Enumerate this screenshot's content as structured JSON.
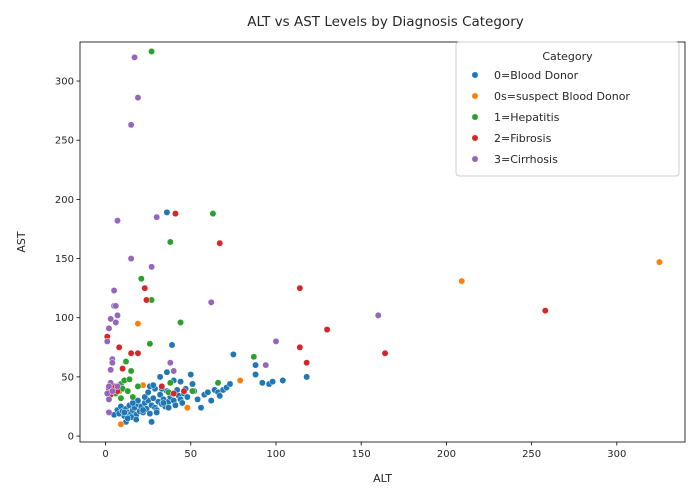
{
  "chart_data": {
    "type": "scatter",
    "title": "ALT vs AST Levels by Diagnosis Category",
    "xlabel": "ALT",
    "ylabel": "AST",
    "xlim": [
      -15,
      340
    ],
    "ylim": [
      -5,
      333
    ],
    "xticks": [
      0,
      50,
      100,
      150,
      200,
      250,
      300
    ],
    "yticks": [
      0,
      50,
      100,
      150,
      200,
      250,
      300
    ],
    "grid": false,
    "legend": {
      "title": "Category",
      "placement": "top-right"
    },
    "series": [
      {
        "name": "0=Blood Donor",
        "color": "#1f77b4",
        "points": [
          [
            5,
            18
          ],
          [
            7,
            22
          ],
          [
            8,
            19
          ],
          [
            9,
            25
          ],
          [
            10,
            21
          ],
          [
            11,
            17
          ],
          [
            12,
            23
          ],
          [
            13,
            20
          ],
          [
            14,
            26
          ],
          [
            15,
            19
          ],
          [
            16,
            22
          ],
          [
            17,
            24
          ],
          [
            18,
            18
          ],
          [
            19,
            27
          ],
          [
            20,
            21
          ],
          [
            21,
            25
          ],
          [
            22,
            20
          ],
          [
            23,
            28
          ],
          [
            24,
            23
          ],
          [
            25,
            30
          ],
          [
            26,
            19
          ],
          [
            27,
            26
          ],
          [
            28,
            32
          ],
          [
            29,
            24
          ],
          [
            30,
            22
          ],
          [
            31,
            29
          ],
          [
            32,
            35
          ],
          [
            33,
            27
          ],
          [
            34,
            31
          ],
          [
            35,
            25
          ],
          [
            36,
            38
          ],
          [
            37,
            29
          ],
          [
            38,
            33
          ],
          [
            39,
            36
          ],
          [
            40,
            30
          ],
          [
            41,
            26
          ],
          [
            42,
            39
          ],
          [
            43,
            34
          ],
          [
            44,
            31
          ],
          [
            45,
            28
          ],
          [
            46,
            36
          ],
          [
            47,
            40
          ],
          [
            48,
            33
          ],
          [
            50,
            52
          ],
          [
            51,
            44
          ],
          [
            52,
            38
          ],
          [
            54,
            31
          ],
          [
            56,
            24
          ],
          [
            58,
            35
          ],
          [
            60,
            37
          ],
          [
            62,
            30
          ],
          [
            64,
            39
          ],
          [
            66,
            37
          ],
          [
            67,
            34
          ],
          [
            69,
            39
          ],
          [
            71,
            41
          ],
          [
            73,
            44
          ],
          [
            75,
            69
          ],
          [
            88,
            52
          ],
          [
            88,
            60
          ],
          [
            92,
            45
          ],
          [
            96,
            44
          ],
          [
            98,
            46
          ],
          [
            104,
            47
          ],
          [
            118,
            50
          ],
          [
            36,
            189
          ],
          [
            39,
            77
          ],
          [
            12,
            12
          ],
          [
            15,
            16
          ],
          [
            18,
            14
          ],
          [
            22,
            22
          ],
          [
            27,
            12
          ],
          [
            30,
            20
          ],
          [
            33,
            40
          ],
          [
            36,
            54
          ],
          [
            40,
            47
          ],
          [
            44,
            46
          ],
          [
            48,
            24
          ],
          [
            26,
            42
          ],
          [
            29,
            40
          ],
          [
            32,
            50
          ],
          [
            19,
            30
          ],
          [
            23,
            33
          ],
          [
            16,
            28
          ],
          [
            11,
            20
          ],
          [
            13,
            15
          ],
          [
            25,
            37
          ],
          [
            28,
            43
          ],
          [
            34,
            28
          ],
          [
            37,
            24
          ]
        ]
      },
      {
        "name": "0s=suspect Blood Donor",
        "color": "#ff7f0e",
        "points": [
          [
            9,
            10
          ],
          [
            19,
            95
          ],
          [
            22,
            43
          ],
          [
            48,
            24
          ],
          [
            79,
            47
          ],
          [
            209,
            131
          ],
          [
            325,
            147
          ]
        ]
      },
      {
        "name": "1=Hepatitis",
        "color": "#2ca02c",
        "points": [
          [
            6,
            36
          ],
          [
            7,
            42
          ],
          [
            8,
            38
          ],
          [
            9,
            44
          ],
          [
            10,
            40
          ],
          [
            11,
            47
          ],
          [
            12,
            63
          ],
          [
            13,
            38
          ],
          [
            14,
            48
          ],
          [
            15,
            55
          ],
          [
            16,
            33
          ],
          [
            19,
            42
          ],
          [
            21,
            133
          ],
          [
            26,
            78
          ],
          [
            27,
            115
          ],
          [
            27,
            325
          ],
          [
            37,
            37
          ],
          [
            38,
            164
          ],
          [
            38,
            45
          ],
          [
            44,
            96
          ],
          [
            51,
            38
          ],
          [
            63,
            188
          ],
          [
            66,
            45
          ],
          [
            87,
            67
          ],
          [
            9,
            32
          ]
        ]
      },
      {
        "name": "2=Fibrosis",
        "color": "#d62728",
        "points": [
          [
            2,
            40
          ],
          [
            3,
            35
          ],
          [
            5,
            42
          ],
          [
            7,
            38
          ],
          [
            8,
            75
          ],
          [
            10,
            57
          ],
          [
            15,
            70
          ],
          [
            19,
            70
          ],
          [
            23,
            125
          ],
          [
            24,
            115
          ],
          [
            33,
            42
          ],
          [
            40,
            36
          ],
          [
            41,
            188
          ],
          [
            46,
            38
          ],
          [
            67,
            163
          ],
          [
            114,
            125
          ],
          [
            114,
            75
          ],
          [
            118,
            62
          ],
          [
            130,
            90
          ],
          [
            164,
            70
          ],
          [
            258,
            106
          ],
          [
            1,
            84
          ]
        ]
      },
      {
        "name": "3=Cirrhosis",
        "color": "#9467bd",
        "points": [
          [
            1,
            80
          ],
          [
            1,
            36
          ],
          [
            2,
            91
          ],
          [
            2,
            20
          ],
          [
            2,
            31
          ],
          [
            3,
            99
          ],
          [
            3,
            56
          ],
          [
            3,
            45
          ],
          [
            4,
            65
          ],
          [
            4,
            62
          ],
          [
            5,
            123
          ],
          [
            5,
            110
          ],
          [
            6,
            96
          ],
          [
            6,
            110
          ],
          [
            7,
            182
          ],
          [
            7,
            102
          ],
          [
            7,
            42
          ],
          [
            15,
            150
          ],
          [
            15,
            263
          ],
          [
            17,
            320
          ],
          [
            19,
            286
          ],
          [
            27,
            143
          ],
          [
            30,
            185
          ],
          [
            38,
            62
          ],
          [
            40,
            55
          ],
          [
            62,
            113
          ],
          [
            94,
            60
          ],
          [
            100,
            80
          ],
          [
            160,
            102
          ],
          [
            2,
            42
          ],
          [
            4,
            38
          ]
        ]
      }
    ]
  }
}
